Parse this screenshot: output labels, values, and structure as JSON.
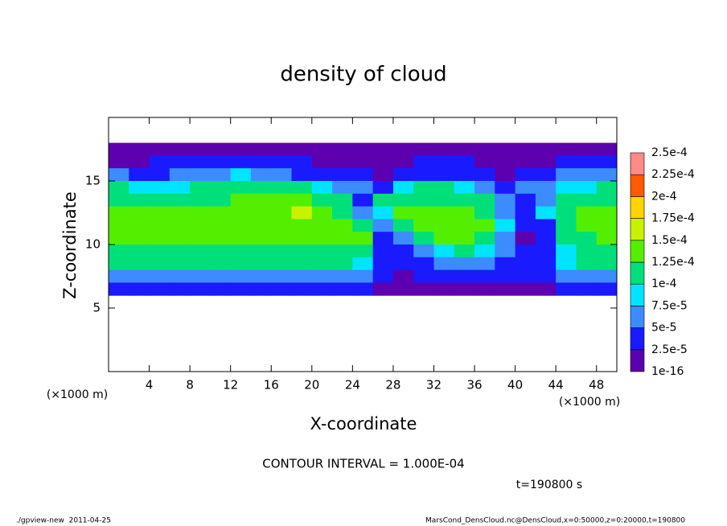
{
  "chart_data": {
    "type": "heatmap",
    "title": "density of cloud",
    "x_label": "X-coordinate",
    "y_label": "Z-coordinate",
    "x_unit_label": "(×1000 m)",
    "contour_note": "CONTOUR INTERVAL = 1.000E-04",
    "time_note": "t=190800 s",
    "footer_left": "./gpview-new  2011-04-25",
    "footer_right": "MarsCond_DensCloud.nc@DensCloud,x=0:50000,z=0:20000,t=190800",
    "xlim": [
      0,
      50
    ],
    "ylim": [
      0,
      20
    ],
    "xticks": [
      4,
      8,
      12,
      16,
      20,
      24,
      28,
      32,
      36,
      40,
      44,
      48
    ],
    "yticks": [
      5,
      10,
      15
    ],
    "x": [
      1,
      3,
      5,
      7,
      9,
      11,
      13,
      15,
      17,
      19,
      21,
      23,
      25,
      27,
      29,
      31,
      33,
      35,
      37,
      39,
      41,
      43,
      45,
      47,
      49
    ],
    "y": [
      17.5,
      16.5,
      15.5,
      14.5,
      13.5,
      12.5,
      11.5,
      10.5,
      9.5,
      8.5,
      7.5,
      6.5
    ],
    "z": [
      [
        5e-06,
        5e-06,
        5e-06,
        5e-06,
        5e-06,
        5e-06,
        5e-06,
        5e-06,
        5e-06,
        5e-06,
        5e-06,
        5e-06,
        5e-06,
        5e-06,
        5e-06,
        2e-05,
        2e-05,
        2e-05,
        5e-06,
        5e-06,
        5e-06,
        5e-06,
        5e-06,
        5e-06,
        5e-06
      ],
      [
        2e-05,
        2e-05,
        4e-05,
        4e-05,
        4e-05,
        4e-05,
        4e-05,
        4e-05,
        4e-05,
        4e-05,
        2e-05,
        2e-05,
        2e-05,
        5e-06,
        2e-05,
        4e-05,
        4e-05,
        4e-05,
        2e-05,
        2e-05,
        2e-05,
        2e-05,
        4e-05,
        4e-05,
        4e-05
      ],
      [
        6e-05,
        4e-05,
        4e-05,
        6e-05,
        6e-05,
        6e-05,
        8e-05,
        6e-05,
        6e-05,
        4e-05,
        4e-05,
        4e-05,
        4e-05,
        2e-05,
        4e-05,
        4e-05,
        4e-05,
        4e-05,
        4e-05,
        2e-05,
        4e-05,
        4e-05,
        6e-05,
        6e-05,
        6e-05
      ],
      [
        0.0001,
        8e-05,
        8e-05,
        8e-05,
        0.0001,
        0.0001,
        0.0001,
        0.0001,
        0.0001,
        0.0001,
        8e-05,
        6e-05,
        6e-05,
        4e-05,
        8e-05,
        0.0001,
        0.0001,
        8e-05,
        6e-05,
        4e-05,
        6e-05,
        6e-05,
        8e-05,
        8e-05,
        0.0001
      ],
      [
        0.00012,
        0.00012,
        0.0001,
        0.00012,
        0.00012,
        0.00012,
        0.00014,
        0.00014,
        0.00014,
        0.00014,
        0.00012,
        0.00012,
        4e-05,
        0.0001,
        0.00012,
        0.00012,
        0.00012,
        0.00012,
        0.0001,
        6e-05,
        4e-05,
        6e-05,
        0.0001,
        0.00012,
        0.00012
      ],
      [
        0.00014,
        0.00014,
        0.00014,
        0.00014,
        0.00014,
        0.00014,
        0.00014,
        0.00014,
        0.00014,
        0.00016,
        0.00014,
        0.00012,
        6e-05,
        8e-05,
        0.00014,
        0.00014,
        0.00014,
        0.00014,
        0.00012,
        6e-05,
        4e-05,
        8e-05,
        0.00012,
        0.00014,
        0.00014
      ],
      [
        0.00014,
        0.00014,
        0.00014,
        0.00014,
        0.00014,
        0.00014,
        0.00014,
        0.00014,
        0.00014,
        0.00014,
        0.00014,
        0.00014,
        0.0001,
        6e-05,
        0.00012,
        0.00014,
        0.00014,
        0.00014,
        0.00014,
        8e-05,
        4e-05,
        4e-05,
        0.00012,
        0.00014,
        0.00014
      ],
      [
        0.00014,
        0.00014,
        0.00014,
        0.00014,
        0.00014,
        0.00014,
        0.00014,
        0.00014,
        0.00014,
        0.00014,
        0.00014,
        0.00014,
        0.00014,
        4e-05,
        6e-05,
        0.00012,
        0.00014,
        0.00014,
        0.00012,
        6e-05,
        2e-05,
        4e-05,
        0.0001,
        0.00012,
        0.00014
      ],
      [
        0.00012,
        0.00012,
        0.00012,
        0.00012,
        0.00012,
        0.00012,
        0.00012,
        0.00012,
        0.00012,
        0.00012,
        0.00012,
        0.00012,
        0.0001,
        4e-05,
        4e-05,
        6e-05,
        8e-05,
        0.0001,
        8e-05,
        6e-05,
        4e-05,
        4e-05,
        8e-05,
        0.00012,
        0.00012
      ],
      [
        0.0001,
        0.0001,
        0.0001,
        0.0001,
        0.0001,
        0.0001,
        0.0001,
        0.0001,
        0.0001,
        0.0001,
        0.0001,
        0.0001,
        8e-05,
        4e-05,
        4e-05,
        4e-05,
        6e-05,
        6e-05,
        6e-05,
        4e-05,
        4e-05,
        4e-05,
        8e-05,
        0.0001,
        0.0001
      ],
      [
        6e-05,
        6e-05,
        6e-05,
        6e-05,
        6e-05,
        6e-05,
        6e-05,
        6e-05,
        6e-05,
        6e-05,
        6e-05,
        6e-05,
        6e-05,
        4e-05,
        2e-05,
        4e-05,
        4e-05,
        4e-05,
        4e-05,
        4e-05,
        4e-05,
        4e-05,
        6e-05,
        6e-05,
        6e-05
      ],
      [
        4e-05,
        4e-05,
        4e-05,
        4e-05,
        4e-05,
        4e-05,
        4e-05,
        4e-05,
        4e-05,
        4e-05,
        4e-05,
        4e-05,
        4e-05,
        2e-05,
        2e-05,
        2e-05,
        2e-05,
        2e-05,
        2e-05,
        2e-05,
        2e-05,
        2e-05,
        4e-05,
        4e-05,
        4e-05
      ]
    ],
    "levels": [
      {
        "value": 1e-16,
        "label": "1e-16"
      },
      {
        "value": 2.5e-05,
        "label": "2.5e-5"
      },
      {
        "value": 5e-05,
        "label": "5e-5"
      },
      {
        "value": 7.5e-05,
        "label": "7.5e-5"
      },
      {
        "value": 0.0001,
        "label": "1e-4"
      },
      {
        "value": 0.000125,
        "label": "1.25e-4"
      },
      {
        "value": 0.00015,
        "label": "1.5e-4"
      },
      {
        "value": 0.000175,
        "label": "1.75e-4"
      },
      {
        "value": 0.0002,
        "label": "2e-4"
      },
      {
        "value": 0.000225,
        "label": "2.25e-4"
      },
      {
        "value": 0.00025,
        "label": "2.5e-4"
      }
    ],
    "colors": [
      "#5c00b0",
      "#1a1aff",
      "#3c8cff",
      "#00e4ff",
      "#00e07a",
      "#54ef00",
      "#c8f200",
      "#ffd400",
      "#ff5a00",
      "#ff8a8a"
    ]
  }
}
